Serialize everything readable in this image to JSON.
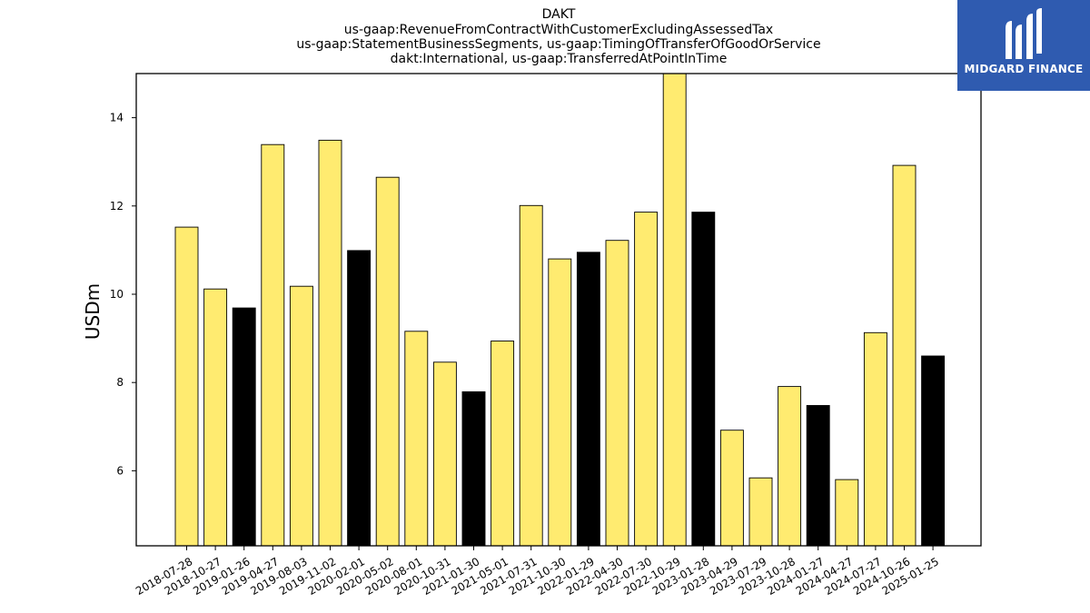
{
  "chart_data": {
    "type": "bar",
    "title_lines": [
      "DAKT",
      "us-gaap:RevenueFromContractWithCustomerExcludingAssessedTax",
      "us-gaap:StatementBusinessSegments, us-gaap:TimingOfTransferOfGoodOrService",
      "dakt:International, us-gaap:TransferredAtPointInTime"
    ],
    "ylabel": "USDm",
    "ylim": [
      4.3,
      15.0
    ],
    "yticks": [
      6,
      8,
      10,
      12,
      14
    ],
    "grid": false,
    "colors": {
      "default_bar": "#ffeb70",
      "highlight_bar": "#000000",
      "edge": "#000000"
    },
    "categories": [
      "2018-07-28",
      "2018-10-27",
      "2019-01-26",
      "2019-04-27",
      "2019-08-03",
      "2019-11-02",
      "2020-02-01",
      "2020-05-02",
      "2020-08-01",
      "2020-10-31",
      "2021-01-30",
      "2021-05-01",
      "2021-07-31",
      "2021-10-30",
      "2022-01-29",
      "2022-04-30",
      "2022-07-30",
      "2022-10-29",
      "2023-01-28",
      "2023-04-29",
      "2023-07-29",
      "2023-10-28",
      "2024-01-27",
      "2024-04-27",
      "2024-07-27",
      "2024-10-26",
      "2025-01-25"
    ],
    "values": [
      11.52,
      10.12,
      9.69,
      13.39,
      10.18,
      13.49,
      10.99,
      12.65,
      9.16,
      8.46,
      7.79,
      8.94,
      12.01,
      10.8,
      10.95,
      11.22,
      11.86,
      15.0,
      11.86,
      6.92,
      5.84,
      7.91,
      7.48,
      5.8,
      9.13,
      12.92,
      8.6
    ],
    "highlighted": [
      false,
      false,
      true,
      false,
      false,
      false,
      true,
      false,
      false,
      false,
      true,
      false,
      false,
      false,
      true,
      false,
      false,
      false,
      true,
      false,
      false,
      false,
      true,
      false,
      false,
      false,
      true
    ]
  },
  "logo": {
    "text": "MIDGARD FINANCE",
    "icon": "midgard-logo-icon"
  }
}
